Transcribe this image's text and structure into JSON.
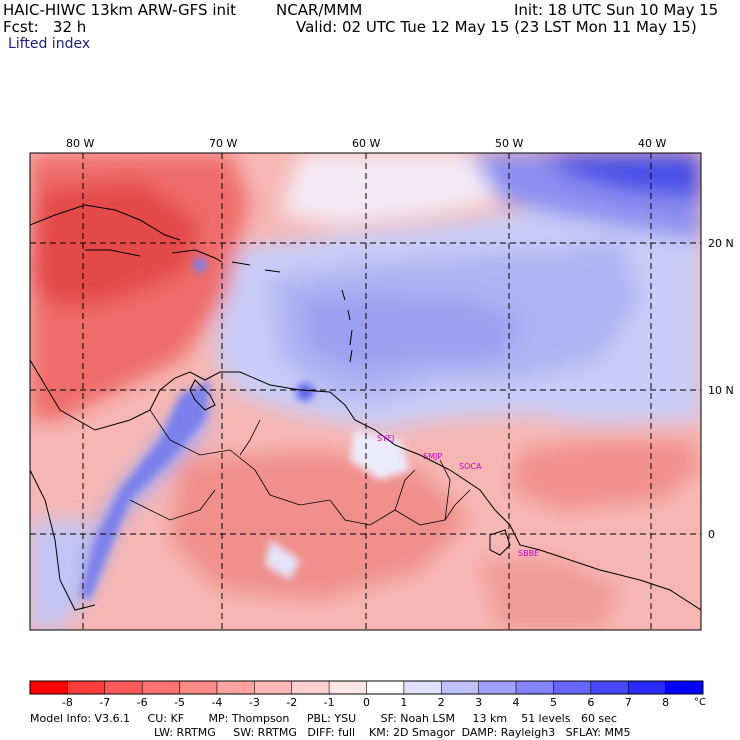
{
  "header": {
    "model": "HAIC-HIWC 13km ARW-GFS init",
    "org": "NCAR/MMM",
    "init": "Init: 18 UTC Sun 10 May 15",
    "fcst": "Fcst:   32 h",
    "valid": "Valid: 02 UTC Tue 12 May 15 (23 LST Mon 11 May 15)",
    "field": "Lifted index"
  },
  "map": {
    "lon_labels": [
      "80 W",
      "70 W",
      "60 W",
      "50 W",
      "40 W"
    ],
    "lat_labels": [
      "20 N",
      "10 N",
      "0"
    ],
    "stations": [
      "SYEJ",
      "SMJP",
      "SOCA",
      "SBBE"
    ],
    "colors": {
      "strong_unstable": "#e02020",
      "unstable": "#f27878",
      "weak_unstable": "#f9c4c4",
      "neutral": "#ffffff",
      "weak_stable": "#c8c8f6",
      "stable": "#7878f0",
      "strong_stable": "#2020e0",
      "grid": "#000000",
      "station": "#cc00cc"
    }
  },
  "colorbar": {
    "ticks": [
      "-8",
      "-7",
      "-6",
      "-5",
      "-4",
      "-3",
      "-2",
      "-1",
      "0",
      "1",
      "2",
      "3",
      "4",
      "5",
      "6",
      "7",
      "8"
    ],
    "unit": "°C",
    "colors": [
      "#ff0000",
      "#ff3c3c",
      "#ff5a5a",
      "#ff7272",
      "#ff8a8a",
      "#ffa2a2",
      "#ffb9b9",
      "#ffd0d0",
      "#ffe6e6",
      "#ffffff",
      "#e0e0ff",
      "#c0c0ff",
      "#a0a0ff",
      "#8484ff",
      "#6666ff",
      "#4848ff",
      "#2a2aff",
      "#0000ff"
    ]
  },
  "footer": {
    "line1": "Model Info: V3.6.1     CU: KF       MP: Thompson     PBL: YSU       SF: Noah LSM     13 km    51 levels   60 sec",
    "line2": "LW: RRTMG     SW: RRTMG   DIFF: full    KM: 2D Smagor  DAMP: Rayleigh3   SFLAY: MM5"
  }
}
